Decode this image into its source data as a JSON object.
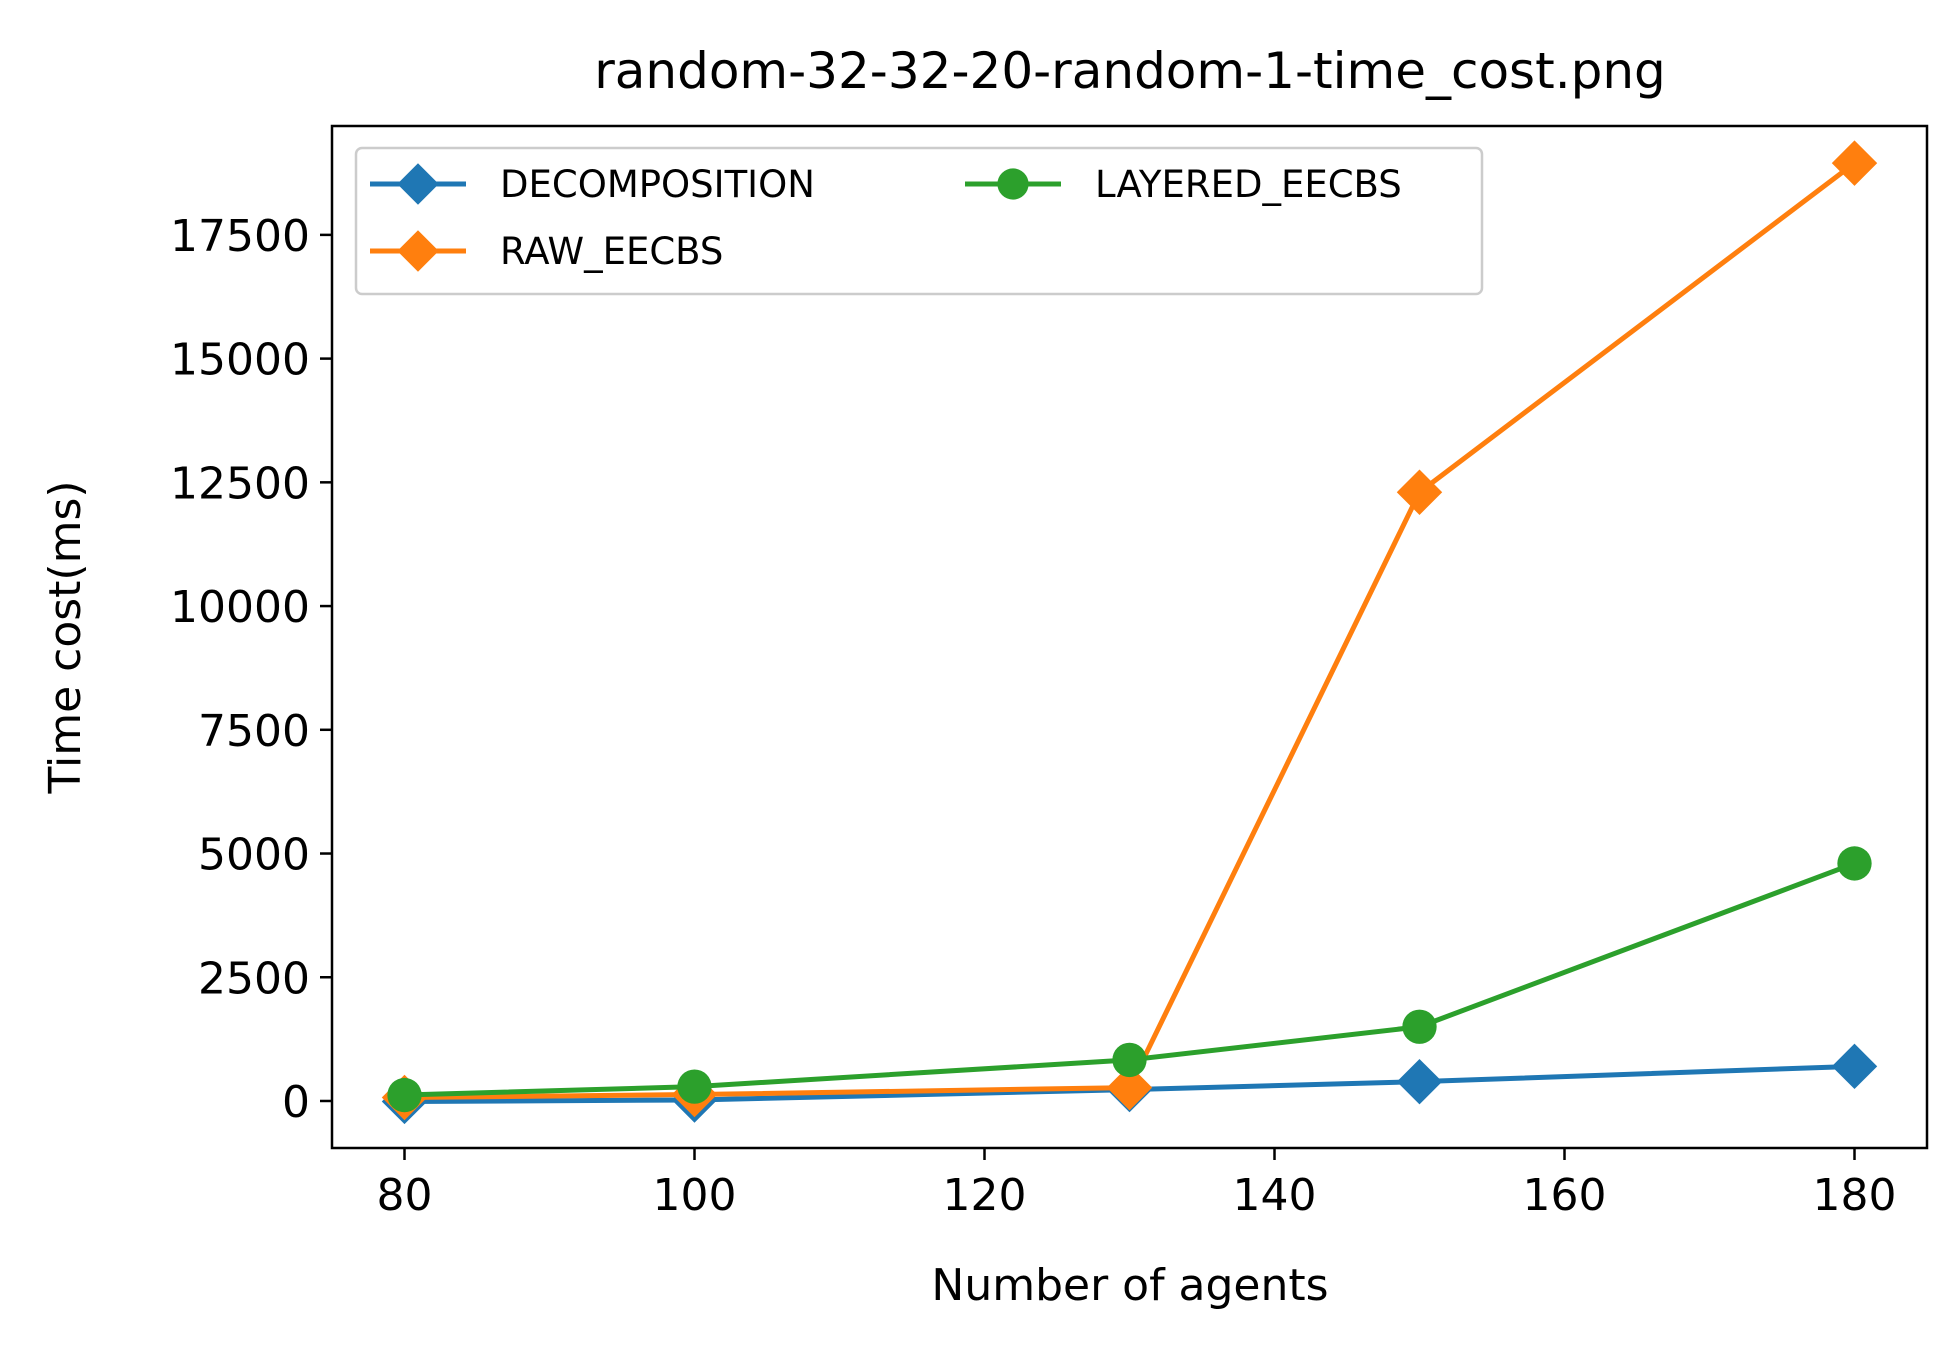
{
  "chart_data": {
    "type": "line",
    "title": "random-32-32-20-random-1-time_cost.png",
    "xlabel": "Number of agents",
    "ylabel": "Time cost(ms)",
    "x": [
      80,
      100,
      130,
      150,
      180
    ],
    "xlim": [
      75,
      185
    ],
    "ylim": [
      -950,
      19700
    ],
    "xticks": [
      80,
      100,
      120,
      140,
      160,
      180
    ],
    "yticks": [
      0,
      2500,
      5000,
      7500,
      10000,
      12500,
      15000,
      17500
    ],
    "grid": false,
    "legend": {
      "placement": "top-left",
      "columns": 2
    },
    "series": [
      {
        "name": "DECOMPOSITION",
        "color": "#1f77b4",
        "marker": "diamond",
        "values": [
          -10,
          20,
          230,
          390,
          700
        ]
      },
      {
        "name": "RAW_EECBS",
        "color": "#ff7f0e",
        "marker": "diamond",
        "values": [
          70,
          130,
          270,
          12300,
          18950
        ]
      },
      {
        "name": "LAYERED_EECBS",
        "color": "#2ca02c",
        "marker": "circle",
        "values": [
          120,
          290,
          830,
          1500,
          4800
        ]
      }
    ]
  }
}
